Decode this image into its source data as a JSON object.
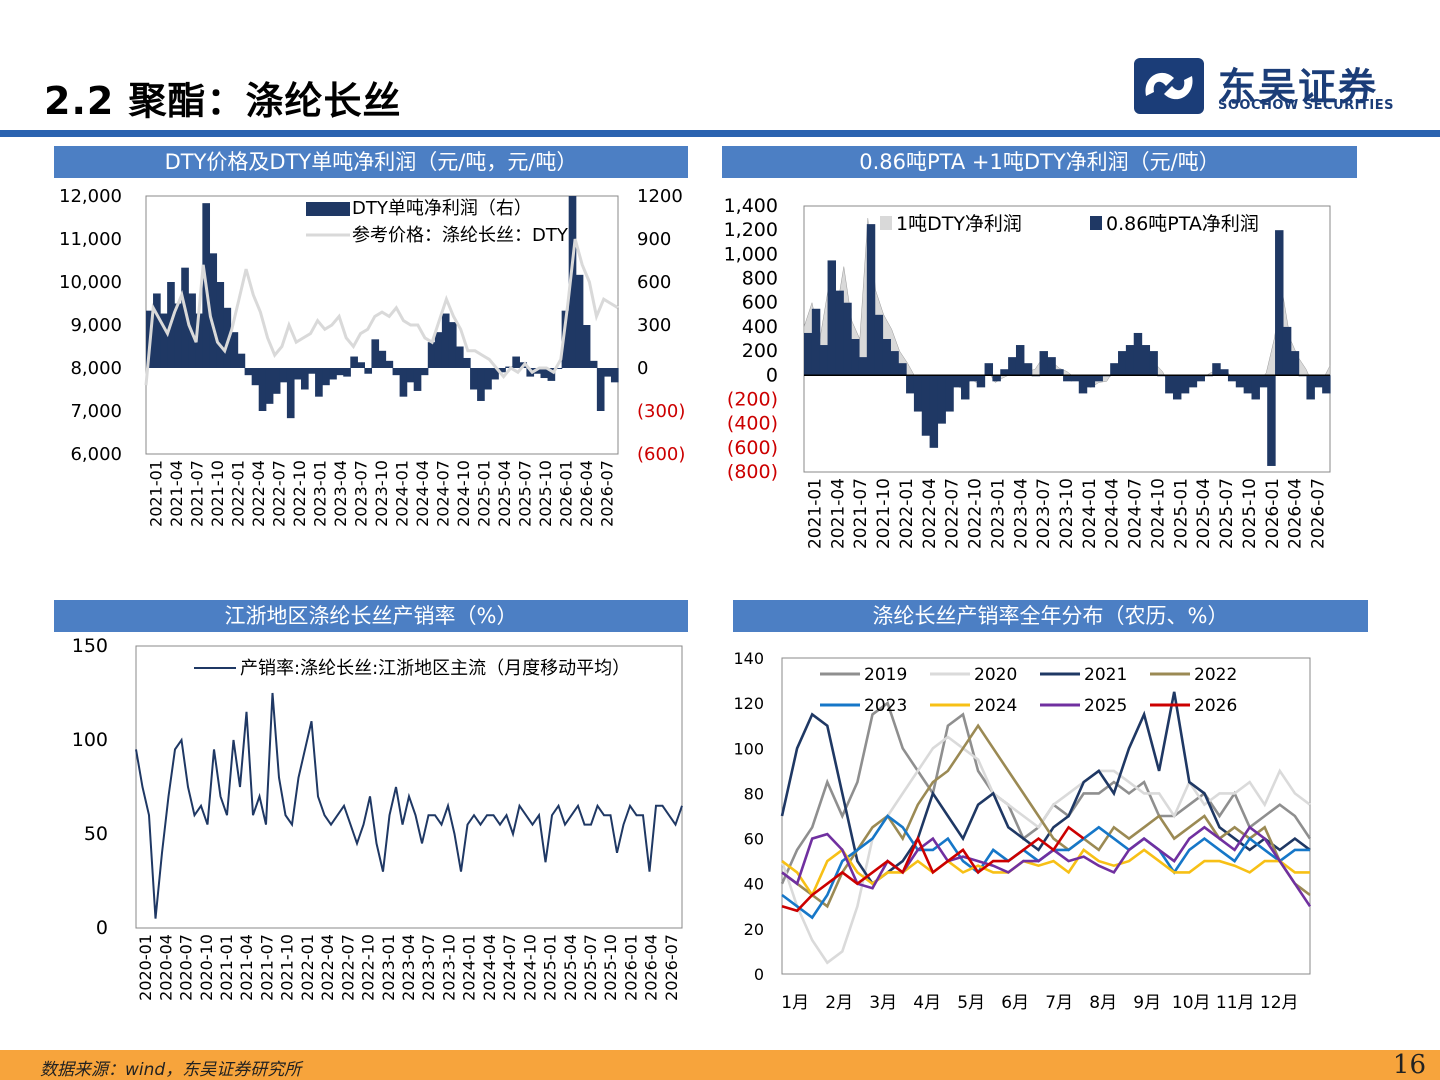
{
  "page": {
    "title": "2.2 聚酯：涤纶长丝",
    "logo_cn": "东吴证券",
    "logo_en": "SOOCHOW SECURITIES",
    "source": "数据来源：wind，东吴证券研究所",
    "page_number": "16",
    "colors": {
      "accent": "#2a63b0",
      "header_bg": "#4c7fc4",
      "footer": "#f7a43c",
      "navy": "#1f3864",
      "gray": "#d9d9d9",
      "negative": "#cc0000"
    }
  },
  "headers": {
    "c1": "DTY价格及DTY单吨净利润（元/吨，元/吨）",
    "c2": "0.86吨PTA +1吨DTY净利润（元/吨）",
    "c3": "江浙地区涤纶长丝产销率（%）",
    "c4": "涤纶长丝产销率全年分布（农历、%）"
  },
  "chart_data": [
    {
      "id": "c1",
      "type": "bar",
      "xlabels": [
        "2021-01",
        "2021-04",
        "2021-07",
        "2021-10",
        "2022-01",
        "2022-04",
        "2022-07",
        "2022-10",
        "2023-01",
        "2023-04",
        "2023-07",
        "2023-10",
        "2024-01",
        "2024-04",
        "2024-07",
        "2024-10",
        "2025-01",
        "2025-04",
        "2025-07",
        "2025-10",
        "2026-01",
        "2026-04",
        "2026-07"
      ],
      "left_axis": {
        "ticks": [
          "6,000",
          "7,000",
          "8,000",
          "9,000",
          "10,000",
          "11,000",
          "12,000"
        ],
        "ylim": [
          6000,
          12000
        ]
      },
      "right_axis": {
        "ticks": [
          "1200",
          "900",
          "600",
          "300",
          "0",
          "(300)",
          "(600)"
        ],
        "ylim": [
          -600,
          1200
        ]
      },
      "series": [
        {
          "name": "DTY单吨净利润（右）",
          "axis": "right",
          "color": "#1f3864",
          "values": [
            400,
            520,
            380,
            600,
            450,
            700,
            520,
            380,
            1150,
            800,
            600,
            420,
            250,
            100,
            -50,
            -120,
            -300,
            -250,
            -180,
            -100,
            -350,
            -80,
            -150,
            -40,
            -200,
            -120,
            -80,
            -50,
            -60,
            80,
            40,
            -40,
            200,
            120,
            50,
            -50,
            -200,
            -100,
            -160,
            -50,
            180,
            250,
            380,
            320,
            150,
            70,
            -150,
            -230,
            -150,
            -80,
            -30,
            10,
            80,
            40,
            -60,
            -40,
            -70,
            -90,
            0,
            400,
            1200,
            650,
            300,
            50,
            -300,
            -60,
            -100
          ]
        },
        {
          "name": "参考价格：涤纶长丝：DTY",
          "axis": "left",
          "color": "#d9d9d9",
          "values": [
            7600,
            9400,
            9100,
            8800,
            9300,
            9700,
            9000,
            8600,
            10400,
            9200,
            8600,
            8400,
            8900,
            9600,
            10300,
            9700,
            9300,
            8700,
            8300,
            8500,
            9000,
            8600,
            8700,
            8800,
            9100,
            8900,
            9000,
            9200,
            8700,
            8500,
            8800,
            8900,
            9200,
            9300,
            9200,
            9400,
            9100,
            9000,
            9000,
            8700,
            8600,
            9100,
            9600,
            9200,
            8900,
            8400,
            8400,
            8300,
            8200,
            8000,
            7800,
            8000,
            7900,
            8100,
            7900,
            8000,
            8000,
            7900,
            8200,
            9500,
            11000,
            10400,
            10000,
            9200,
            9600,
            9500,
            9400
          ]
        }
      ]
    },
    {
      "id": "c2",
      "type": "area",
      "xlabels": [
        "2021-01",
        "2021-04",
        "2021-07",
        "2021-10",
        "2022-01",
        "2022-04",
        "2022-07",
        "2022-10",
        "2023-01",
        "2023-04",
        "2023-07",
        "2023-10",
        "2024-01",
        "2024-04",
        "2024-07",
        "2024-10",
        "2025-01",
        "2025-04",
        "2025-07",
        "2025-10",
        "2026-01",
        "2026-04",
        "2026-07"
      ],
      "yticks": [
        "1,400",
        "1,200",
        "1,000",
        "800",
        "600",
        "400",
        "200",
        "0",
        "(200)",
        "(400)",
        "(600)",
        "(800)"
      ],
      "ylim": [
        -800,
        1400
      ],
      "series": [
        {
          "name": "1吨DTY净利润",
          "color": "#d9d9d9",
          "values": [
            400,
            600,
            300,
            700,
            500,
            900,
            450,
            300,
            1300,
            700,
            500,
            380,
            200,
            100,
            -20,
            -100,
            -200,
            -180,
            -150,
            -80,
            -120,
            -30,
            -80,
            40,
            -60,
            -20,
            10,
            80,
            30,
            50,
            150,
            120,
            60,
            30,
            -20,
            -80,
            -100,
            -60,
            -50,
            60,
            120,
            200,
            250,
            160,
            100,
            30,
            -100,
            -120,
            -80,
            -50,
            -20,
            20,
            50,
            30,
            -30,
            -20,
            -40,
            -60,
            20,
            300,
            700,
            300,
            150,
            50,
            -100,
            -50,
            80
          ]
        },
        {
          "name": "0.86吨PTA净利润",
          "color": "#1f3864",
          "values": [
            350,
            550,
            250,
            950,
            700,
            600,
            300,
            150,
            1250,
            500,
            300,
            200,
            100,
            -150,
            -300,
            -500,
            -600,
            -400,
            -300,
            -100,
            -200,
            -50,
            -100,
            100,
            -50,
            50,
            150,
            250,
            100,
            0,
            200,
            150,
            50,
            -50,
            -50,
            -150,
            -100,
            -50,
            0,
            100,
            200,
            250,
            350,
            250,
            200,
            0,
            -150,
            -200,
            -150,
            -100,
            -50,
            0,
            100,
            50,
            -50,
            -100,
            -150,
            -200,
            -100,
            -750,
            1200,
            400,
            200,
            0,
            -200,
            -100,
            -150
          ]
        }
      ]
    },
    {
      "id": "c3",
      "type": "line",
      "xlabels": [
        "2020-01",
        "2020-04",
        "2020-07",
        "2020-10",
        "2021-01",
        "2021-04",
        "2021-07",
        "2021-10",
        "2022-01",
        "2022-04",
        "2022-07",
        "2022-10",
        "2023-01",
        "2023-04",
        "2023-07",
        "2023-10",
        "2024-01",
        "2024-04",
        "2024-07",
        "2024-10",
        "2025-01",
        "2025-04",
        "2025-07",
        "2025-10",
        "2026-01",
        "2026-04",
        "2026-07"
      ],
      "yticks": [
        "150",
        "100",
        "50",
        "0"
      ],
      "ylim": [
        0,
        150
      ],
      "series": [
        {
          "name": "产销率:涤纶长丝:江浙地区主流（月度移动平均）",
          "color": "#1f3864",
          "values": [
            95,
            75,
            60,
            5,
            40,
            70,
            95,
            100,
            75,
            60,
            65,
            55,
            95,
            70,
            60,
            100,
            75,
            115,
            60,
            70,
            55,
            125,
            80,
            60,
            55,
            80,
            95,
            110,
            70,
            60,
            55,
            60,
            65,
            55,
            45,
            55,
            70,
            45,
            30,
            60,
            75,
            55,
            70,
            60,
            45,
            60,
            60,
            55,
            65,
            50,
            30,
            55,
            60,
            55,
            60,
            60,
            55,
            60,
            50,
            65,
            60,
            55,
            60,
            35,
            60,
            65,
            55,
            60,
            65,
            55,
            55,
            65,
            60,
            60,
            40,
            55,
            65,
            60,
            60,
            30,
            65,
            65,
            60,
            55,
            65
          ]
        }
      ]
    },
    {
      "id": "c4",
      "type": "line",
      "xlabels": [
        "1月",
        "2月",
        "3月",
        "4月",
        "5月",
        "6月",
        "7月",
        "8月",
        "9月",
        "10月",
        "11月",
        "12月"
      ],
      "yticks": [
        "140",
        "120",
        "100",
        "80",
        "60",
        "40",
        "20",
        "0"
      ],
      "ylim": [
        0,
        140
      ],
      "series": [
        {
          "name": "2019",
          "color": "#8f8f8f",
          "values": [
            40,
            55,
            65,
            85,
            70,
            85,
            115,
            120,
            100,
            90,
            80,
            110,
            115,
            90,
            80,
            75,
            60,
            65,
            75,
            70,
            80,
            80,
            85,
            80,
            85,
            70,
            70,
            75,
            80,
            70,
            80,
            65,
            70,
            75,
            70,
            60
          ]
        },
        {
          "name": "2020",
          "color": "#dadada",
          "values": [
            50,
            30,
            15,
            5,
            10,
            30,
            60,
            70,
            80,
            90,
            100,
            105,
            100,
            95,
            80,
            75,
            70,
            65,
            75,
            80,
            85,
            90,
            90,
            85,
            80,
            80,
            70,
            85,
            75,
            80,
            80,
            85,
            75,
            90,
            80,
            75
          ]
        },
        {
          "name": "2021",
          "color": "#1f3864",
          "values": [
            70,
            100,
            115,
            110,
            80,
            50,
            40,
            45,
            50,
            60,
            80,
            70,
            60,
            75,
            80,
            65,
            60,
            55,
            65,
            70,
            85,
            90,
            80,
            100,
            115,
            90,
            125,
            85,
            80,
            65,
            60,
            55,
            60,
            55,
            60,
            55
          ]
        },
        {
          "name": "2022",
          "color": "#9b8a54",
          "values": [
            45,
            40,
            35,
            30,
            45,
            55,
            65,
            70,
            60,
            75,
            85,
            90,
            100,
            110,
            100,
            90,
            80,
            70,
            60,
            55,
            60,
            55,
            65,
            60,
            65,
            70,
            60,
            65,
            70,
            60,
            65,
            60,
            65,
            50,
            40,
            35
          ]
        },
        {
          "name": "2023",
          "color": "#1677c8",
          "values": [
            35,
            30,
            25,
            35,
            50,
            55,
            60,
            70,
            65,
            55,
            55,
            60,
            50,
            45,
            55,
            50,
            55,
            50,
            55,
            55,
            60,
            65,
            60,
            55,
            60,
            55,
            45,
            55,
            60,
            55,
            50,
            60,
            55,
            50,
            55,
            55
          ]
        },
        {
          "name": "2024",
          "color": "#f7c016",
          "values": [
            50,
            45,
            35,
            50,
            55,
            45,
            40,
            45,
            45,
            50,
            45,
            50,
            45,
            48,
            45,
            45,
            50,
            48,
            50,
            45,
            55,
            50,
            48,
            50,
            55,
            50,
            45,
            45,
            50,
            50,
            48,
            45,
            50,
            50,
            45,
            45
          ]
        },
        {
          "name": "2025",
          "color": "#7030a0",
          "values": [
            45,
            40,
            60,
            62,
            55,
            40,
            38,
            50,
            45,
            55,
            60,
            50,
            52,
            50,
            48,
            45,
            50,
            50,
            55,
            50,
            52,
            48,
            45,
            55,
            60,
            55,
            50,
            60,
            65,
            60,
            55,
            65,
            60,
            50,
            40,
            30
          ]
        },
        {
          "name": "2026",
          "color": "#cc0000",
          "values": [
            30,
            28,
            35,
            40,
            45,
            40,
            45,
            50,
            45,
            60,
            45,
            50,
            55,
            45,
            50,
            50,
            55,
            60,
            55,
            65,
            60
          ]
        }
      ]
    }
  ]
}
